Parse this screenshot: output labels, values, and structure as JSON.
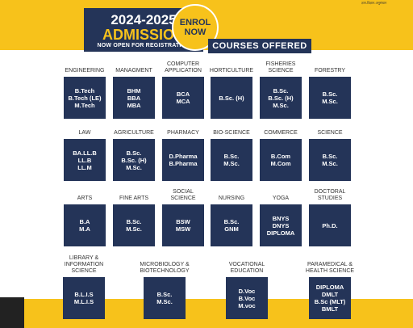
{
  "header": {
    "year": "2024-2025",
    "admission": "ADMISSION",
    "registration": "NOW OPEN FOR REGISTRATION",
    "enrol": [
      "ENROL",
      "NOW"
    ],
    "courses_offered": "COURSES OFFERED",
    "tagline": "ज्ञान-विज्ञान-अनुसंधान"
  },
  "rows": [
    [
      {
        "label": [
          "ENGINEERING"
        ],
        "courses": [
          "B.Tech",
          "B.Tech (LE)",
          "M.Tech"
        ]
      },
      {
        "label": [
          "MANAGMENT"
        ],
        "courses": [
          "BHM",
          "BBA",
          "MBA"
        ]
      },
      {
        "label": [
          "COMPUTER",
          "APPLICATION"
        ],
        "courses": [
          "BCA",
          "MCA"
        ]
      },
      {
        "label": [
          "HORTICULTURE"
        ],
        "courses": [
          "B.Sc. (H)"
        ]
      },
      {
        "label": [
          "FISHERIES",
          "SCIENCE"
        ],
        "courses": [
          "B.Sc.",
          "B.Sc. (H)",
          "M.Sc."
        ]
      },
      {
        "label": [
          "FORESTRY"
        ],
        "courses": [
          "B.Sc.",
          "M.Sc."
        ]
      }
    ],
    [
      {
        "label": [
          "LAW"
        ],
        "courses": [
          "BA.LL.B",
          "LL.B",
          "LL.M"
        ]
      },
      {
        "label": [
          "AGRICULTURE"
        ],
        "courses": [
          "B.Sc.",
          "B.Sc. (H)",
          "M.Sc."
        ]
      },
      {
        "label": [
          "PHARMACY"
        ],
        "courses": [
          "D.Pharma",
          "B.Pharma"
        ]
      },
      {
        "label": [
          "BIO-SCIENCE"
        ],
        "courses": [
          "B.Sc.",
          "M.Sc."
        ]
      },
      {
        "label": [
          "COMMERCE"
        ],
        "courses": [
          "B.Com",
          "M.Com"
        ]
      },
      {
        "label": [
          "SCIENCE"
        ],
        "courses": [
          "B.Sc.",
          "M.Sc."
        ]
      }
    ],
    [
      {
        "label": [
          "ARTS"
        ],
        "courses": [
          "B.A",
          "M.A"
        ]
      },
      {
        "label": [
          "FINE ARTS"
        ],
        "courses": [
          "B.Sc.",
          "M.Sc."
        ]
      },
      {
        "label": [
          "SOCIAL",
          "SCIENCE"
        ],
        "courses": [
          "BSW",
          "MSW"
        ]
      },
      {
        "label": [
          "NURSING"
        ],
        "courses": [
          "B.Sc.",
          "GNM"
        ]
      },
      {
        "label": [
          "YOGA"
        ],
        "courses": [
          "BNYS",
          "DNYS",
          "DIPLOMA"
        ]
      },
      {
        "label": [
          "DOCTORAL",
          "STUDIES"
        ],
        "courses": [
          "Ph.D."
        ]
      }
    ],
    [
      {
        "label": [
          "LIBRARY &",
          "INFORMATION",
          "SCIENCE"
        ],
        "courses": [
          "B.L.I.S",
          "M.L.I.S"
        ]
      },
      {
        "label": [
          "MICROBIOLOGY &",
          "BIOTECHNOLOGY"
        ],
        "courses": [
          "B.Sc.",
          "M.Sc."
        ]
      },
      {
        "label": [
          "VOCATIONAL",
          "EDUCATION"
        ],
        "courses": [
          "D.Voc",
          "B.Voc",
          "M.voc"
        ]
      },
      {
        "label": [
          "PARAMEDICAL &",
          "HEALTH SCIENCE"
        ],
        "courses": [
          "DIPLOMA",
          "DMLT",
          "B.Sc (MLT)",
          "BMLT"
        ]
      }
    ]
  ]
}
